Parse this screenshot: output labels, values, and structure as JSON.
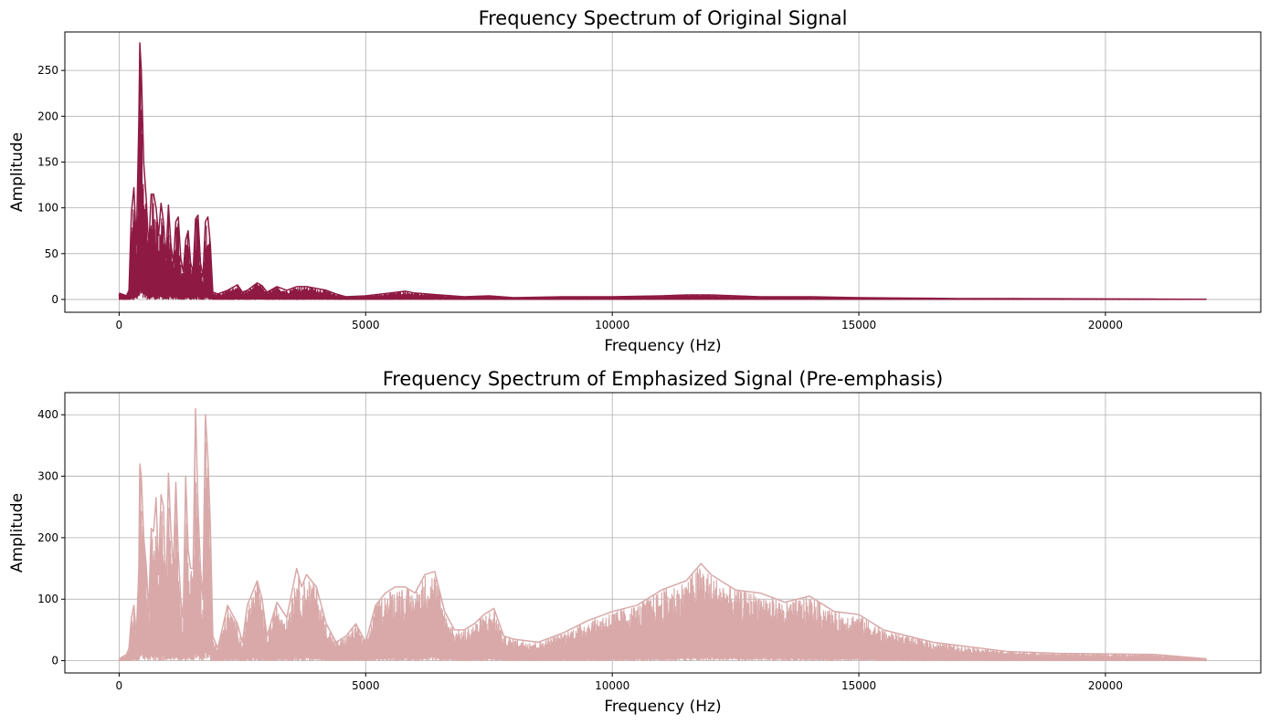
{
  "chart_data": [
    {
      "type": "line",
      "title": "Frequency Spectrum of Original Signal",
      "xlabel": "Frequency (Hz)",
      "ylabel": "Amplitude",
      "xlim": [
        -1100,
        23150
      ],
      "ylim": [
        -14,
        292
      ],
      "xticks": [
        0,
        5000,
        10000,
        15000,
        20000
      ],
      "yticks": [
        0,
        50,
        100,
        150,
        200,
        250
      ],
      "grid": true,
      "color": "#8e1a43",
      "series": [
        {
          "x": [
            0,
            150,
            200,
            250,
            300,
            350,
            400,
            420,
            450,
            500,
            550,
            600,
            650,
            700,
            750,
            800,
            850,
            900,
            950,
            1000,
            1050,
            1100,
            1150,
            1200,
            1250,
            1300,
            1350,
            1400,
            1450,
            1500,
            1550,
            1600,
            1650,
            1700,
            1750,
            1800,
            1850,
            1900,
            2000,
            2200,
            2400,
            2500,
            2600,
            2800,
            2900,
            3000,
            3200,
            3400,
            3600,
            3800,
            4000,
            4200,
            4400,
            4600,
            5000,
            5500,
            5800,
            6000,
            6500,
            7000,
            7500,
            8000,
            9000,
            10000,
            11000,
            11500,
            12000,
            13000,
            14000,
            15000,
            16000,
            17000,
            18000,
            19000,
            20000,
            21000,
            22050
          ],
          "y": [
            7,
            4,
            10,
            95,
            122,
            60,
            195,
            280,
            250,
            148,
            110,
            55,
            115,
            115,
            100,
            70,
            105,
            85,
            45,
            103,
            60,
            40,
            85,
            90,
            45,
            30,
            65,
            75,
            40,
            30,
            88,
            92,
            40,
            25,
            85,
            90,
            60,
            8,
            6,
            10,
            16,
            8,
            10,
            18,
            15,
            8,
            14,
            10,
            14,
            14,
            12,
            10,
            6,
            3,
            4,
            7,
            9,
            7,
            5,
            3,
            4,
            2,
            3,
            3,
            4,
            5,
            5,
            3,
            3,
            2,
            1.5,
            1,
            1,
            0.8,
            0.6,
            0.4,
            0.2
          ]
        }
      ]
    },
    {
      "type": "line",
      "title": "Frequency Spectrum of Emphasized Signal (Pre-emphasis)",
      "xlabel": "Frequency (Hz)",
      "ylabel": "Amplitude",
      "xlim": [
        -1100,
        23150
      ],
      "ylim": [
        -20,
        436
      ],
      "xticks": [
        0,
        5000,
        10000,
        15000,
        20000
      ],
      "yticks": [
        0,
        100,
        200,
        300,
        400
      ],
      "grid": true,
      "color": "#d9a9a9",
      "series": [
        {
          "x": [
            0,
            150,
            200,
            250,
            300,
            350,
            400,
            420,
            450,
            500,
            550,
            600,
            650,
            700,
            750,
            800,
            850,
            900,
            950,
            1000,
            1050,
            1100,
            1150,
            1200,
            1250,
            1300,
            1350,
            1400,
            1450,
            1500,
            1550,
            1600,
            1650,
            1700,
            1750,
            1800,
            1850,
            1900,
            2000,
            2200,
            2400,
            2500,
            2600,
            2800,
            2900,
            3000,
            3200,
            3400,
            3600,
            3700,
            3800,
            3900,
            4000,
            4200,
            4400,
            4600,
            4800,
            5000,
            5200,
            5400,
            5600,
            5800,
            6000,
            6200,
            6400,
            6600,
            6800,
            7000,
            7200,
            7400,
            7600,
            7800,
            8000,
            8500,
            9000,
            9500,
            10000,
            10500,
            11000,
            11500,
            11800,
            12000,
            12500,
            13000,
            13500,
            14000,
            14500,
            15000,
            15500,
            16000,
            16500,
            17000,
            18000,
            19000,
            20000,
            21000,
            22050
          ],
          "y": [
            3,
            10,
            20,
            70,
            90,
            40,
            150,
            320,
            300,
            200,
            155,
            80,
            215,
            210,
            265,
            140,
            270,
            250,
            100,
            305,
            210,
            150,
            290,
            175,
            100,
            70,
            300,
            180,
            150,
            150,
            410,
            250,
            150,
            100,
            400,
            330,
            220,
            40,
            20,
            90,
            60,
            30,
            90,
            130,
            100,
            40,
            95,
            70,
            150,
            120,
            140,
            130,
            120,
            60,
            30,
            40,
            60,
            30,
            90,
            110,
            120,
            120,
            110,
            140,
            145,
            80,
            50,
            50,
            60,
            75,
            85,
            40,
            35,
            30,
            45,
            65,
            80,
            90,
            115,
            130,
            158,
            140,
            115,
            110,
            95,
            105,
            80,
            75,
            50,
            40,
            30,
            25,
            15,
            12,
            11,
            10,
            3
          ]
        }
      ]
    }
  ]
}
